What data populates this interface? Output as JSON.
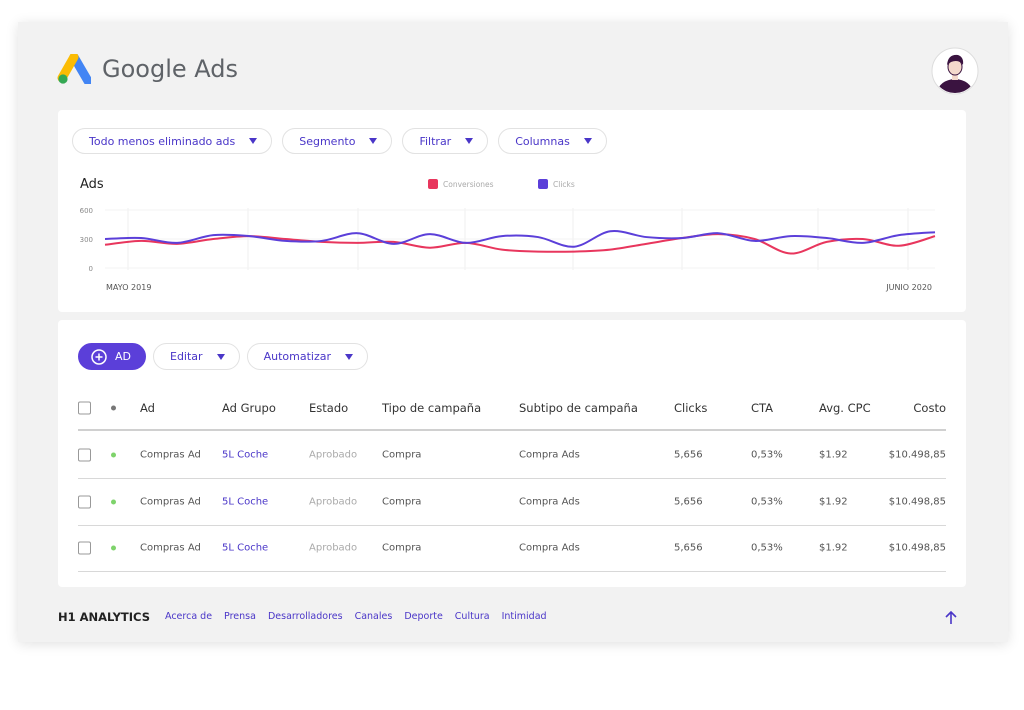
{
  "header": {
    "logo_text": "Google Ads"
  },
  "filters": [
    "Todo menos eliminado ads",
    "Segmento",
    "Filtrar",
    "Columnas"
  ],
  "chart_data": {
    "type": "line",
    "title": "Ads",
    "legend": "top",
    "categories": [
      "MAYO 2019",
      null,
      null,
      null,
      null,
      null,
      null,
      null,
      null,
      null,
      null,
      null,
      null,
      null,
      null,
      null,
      null,
      null,
      null,
      null,
      null,
      null,
      null,
      "JUNIO 2020"
    ],
    "series": [
      {
        "name": "Conversiones",
        "color": "#e8365d",
        "values": [
          240,
          280,
          250,
          300,
          330,
          300,
          270,
          260,
          270,
          210,
          260,
          190,
          170,
          170,
          190,
          250,
          310,
          350,
          300,
          150,
          270,
          300,
          230,
          330
        ]
      },
      {
        "name": "Clicks",
        "color": "#5b3fd9",
        "values": [
          300,
          310,
          260,
          340,
          330,
          280,
          280,
          360,
          250,
          350,
          260,
          330,
          320,
          220,
          380,
          320,
          310,
          360,
          280,
          330,
          310,
          260,
          340,
          370
        ]
      }
    ],
    "ylim": [
      0,
      600
    ],
    "yticks": [
      0,
      300,
      600
    ]
  },
  "actions": [
    "AD",
    "Editar",
    "Automatizar"
  ],
  "table": {
    "columns": [
      "Ad",
      "Ad Grupo",
      "Estado",
      "Tipo de campaña",
      "Subtipo de campaña",
      "Clicks",
      "CTA",
      "Avg. CPC",
      "Costo"
    ],
    "rows": [
      [
        "Compras Ad",
        "5L Coche",
        "Aprobado",
        "Compra",
        "Compra Ads",
        "5,656",
        "0,53%",
        "$1.92",
        "$10.498,85"
      ],
      [
        "Compras Ad",
        "5L Coche",
        "Aprobado",
        "Compra",
        "Compra Ads",
        "5,656",
        "0,53%",
        "$1.92",
        "$10.498,85"
      ],
      [
        "Compras Ad",
        "5L Coche",
        "Aprobado",
        "Compra",
        "Compra Ads",
        "5,656",
        "0,53%",
        "$1.92",
        "$10.498,85"
      ]
    ]
  },
  "footer": {
    "brand": "H1 ANALYTICS",
    "links": [
      "Acerca de",
      "Prensa",
      "Desarrolladores",
      "Canales",
      "Deporte",
      "Cultura",
      "Intimidad"
    ]
  }
}
